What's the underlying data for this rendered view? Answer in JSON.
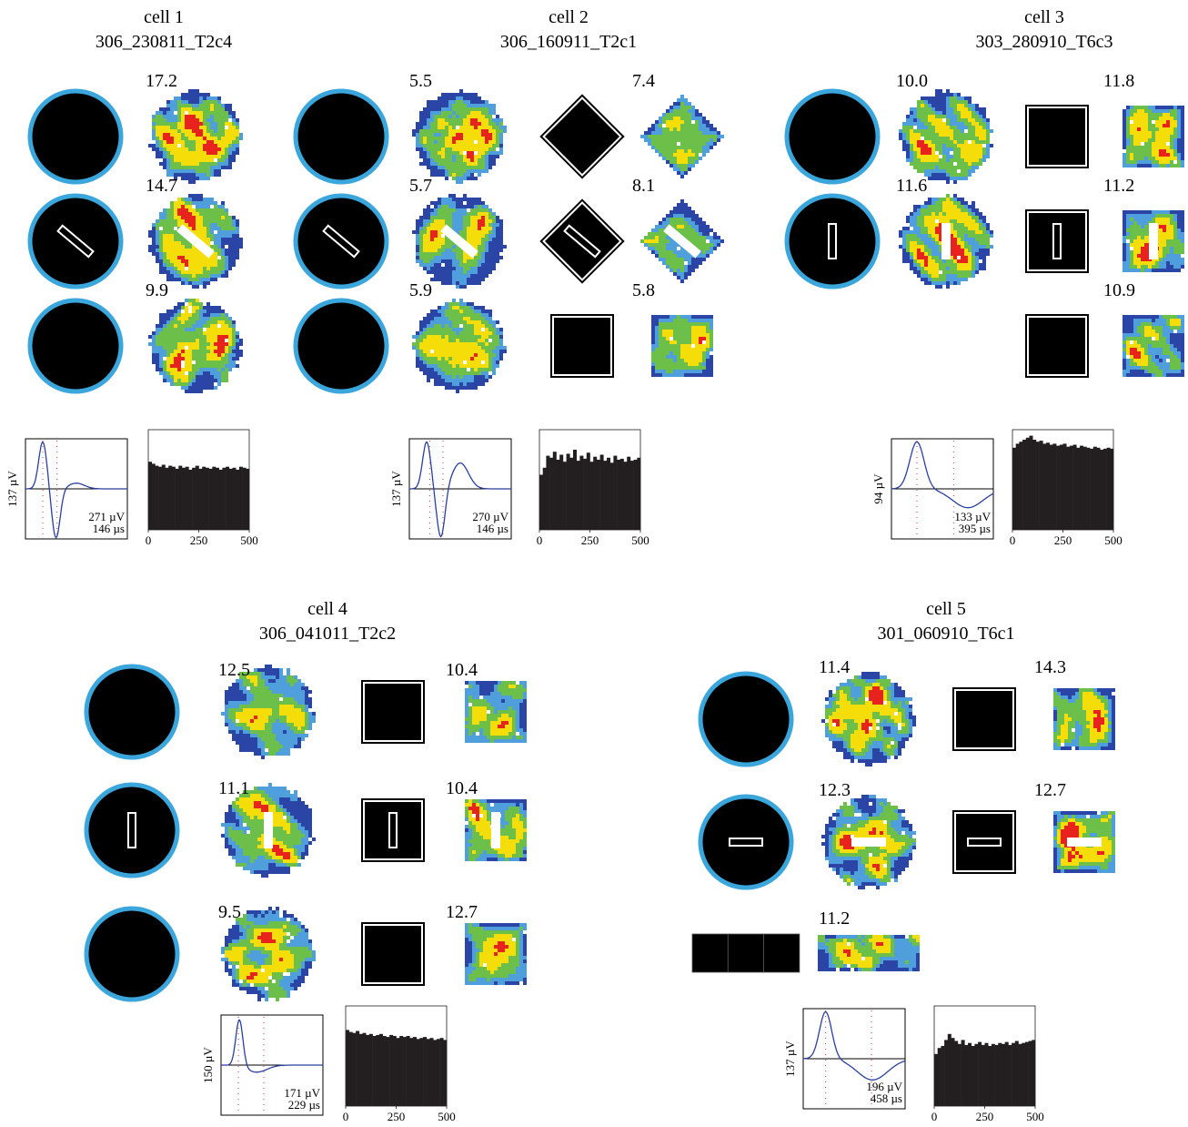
{
  "cells": [
    {
      "label": "cell 1",
      "id": "306_230811_T2c4",
      "rows": [
        [
          {
            "env": "circle",
            "rate": "17.2"
          }
        ],
        [
          {
            "env": "circle",
            "barrier": "diagonal",
            "rate": "14.7"
          }
        ],
        [
          {
            "env": "circle",
            "rate": "9.9"
          }
        ]
      ],
      "waveform": {
        "amplitude": "137 µV",
        "peak": "271 µV",
        "width": "146 µs"
      },
      "histogram": {
        "xlim": [
          0,
          500
        ],
        "xticks": [
          0,
          250,
          500
        ],
        "heights": [
          68,
          66,
          64,
          63,
          65,
          62,
          64,
          63,
          61,
          64,
          62,
          63,
          60,
          62,
          64,
          61,
          63,
          62,
          61,
          63,
          62,
          60,
          62,
          63,
          61,
          62,
          60,
          63,
          62,
          61
        ]
      }
    },
    {
      "label": "cell 2",
      "id": "306_160911_T2c1",
      "rows": [
        [
          {
            "env": "circle",
            "rate": "5.5"
          },
          {
            "env": "diamond",
            "rate": "7.4"
          }
        ],
        [
          {
            "env": "circle",
            "barrier": "diagonal",
            "rate": "5.7"
          },
          {
            "env": "diamond",
            "barrier": "diagonal",
            "rate": "8.1"
          }
        ],
        [
          {
            "env": "circle",
            "rate": "5.9"
          },
          {
            "env": "square",
            "rate": "5.8"
          }
        ]
      ],
      "waveform": {
        "amplitude": "137 µV",
        "peak": "270 µV",
        "width": "146 µs"
      },
      "histogram": {
        "xlim": [
          0,
          500
        ],
        "xticks": [
          0,
          250,
          500
        ],
        "heights": [
          55,
          62,
          74,
          72,
          78,
          70,
          75,
          68,
          76,
          72,
          80,
          69,
          74,
          71,
          77,
          68,
          73,
          70,
          75,
          69,
          72,
          67,
          74,
          70,
          71,
          68,
          73,
          69,
          70,
          72
        ]
      }
    },
    {
      "label": "cell 3",
      "id": "303_280910_T6c3",
      "rows": [
        [
          {
            "env": "circle",
            "rate": "10.0"
          },
          {
            "env": "square",
            "rate": "11.8"
          }
        ],
        [
          {
            "env": "circle",
            "barrier": "vertical",
            "rate": "11.6"
          },
          {
            "env": "square",
            "barrier": "vertical",
            "rate": "11.2"
          }
        ],
        [
          null,
          {
            "env": "square",
            "rate": "10.9"
          }
        ]
      ],
      "waveform": {
        "amplitude": "94 µV",
        "peak": "133 µV",
        "width": "395 µs"
      },
      "histogram": {
        "xlim": [
          0,
          500
        ],
        "xticks": [
          0,
          250,
          500
        ],
        "heights": [
          82,
          86,
          88,
          90,
          92,
          94,
          90,
          88,
          89,
          86,
          87,
          85,
          86,
          84,
          85,
          86,
          83,
          84,
          85,
          82,
          84,
          83,
          82,
          81,
          83,
          82,
          80,
          81,
          82,
          81
        ]
      }
    },
    {
      "label": "cell 4",
      "id": "306_041011_T2c2",
      "rows": [
        [
          {
            "env": "circle",
            "rate": "12.5"
          },
          {
            "env": "square",
            "rate": "10.4"
          }
        ],
        [
          {
            "env": "circle",
            "barrier": "vertical",
            "rate": "11.1"
          },
          {
            "env": "square",
            "barrier": "vertical",
            "rate": "10.4"
          }
        ],
        [
          {
            "env": "circle",
            "rate": "9.5"
          },
          {
            "env": "square",
            "rate": "12.7"
          }
        ]
      ],
      "waveform": {
        "amplitude": "150 µV",
        "peak": "171 µV",
        "width": "229 µs"
      },
      "histogram": {
        "xlim": [
          0,
          500
        ],
        "xticks": [
          0,
          250,
          500
        ],
        "heights": [
          76,
          74,
          73,
          75,
          72,
          73,
          71,
          72,
          70,
          71,
          72,
          70,
          69,
          71,
          70,
          68,
          70,
          69,
          70,
          68,
          69,
          67,
          68,
          69,
          67,
          68,
          66,
          67,
          68,
          66
        ]
      }
    },
    {
      "label": "cell 5",
      "id": "301_060910_T6c1",
      "rows": [
        [
          {
            "env": "circle",
            "rate": "11.4"
          },
          {
            "env": "square",
            "rate": "14.3"
          }
        ],
        [
          {
            "env": "circle",
            "barrier": "horizontal",
            "rate": "12.3"
          },
          {
            "env": "square",
            "barrier": "horizontal",
            "rate": "12.7"
          }
        ],
        [
          {
            "env": "track",
            "rate": "11.2"
          }
        ]
      ],
      "waveform": {
        "amplitude": "137 µV",
        "peak": "196 µV",
        "width": "458 µs"
      },
      "histogram": {
        "xlim": [
          0,
          500
        ],
        "xticks": [
          0,
          250,
          500
        ],
        "heights": [
          52,
          58,
          60,
          66,
          72,
          68,
          65,
          62,
          66,
          61,
          63,
          60,
          62,
          64,
          61,
          63,
          60,
          62,
          61,
          63,
          62,
          64,
          61,
          63,
          65,
          62,
          63,
          64,
          65,
          66
        ]
      }
    }
  ]
}
